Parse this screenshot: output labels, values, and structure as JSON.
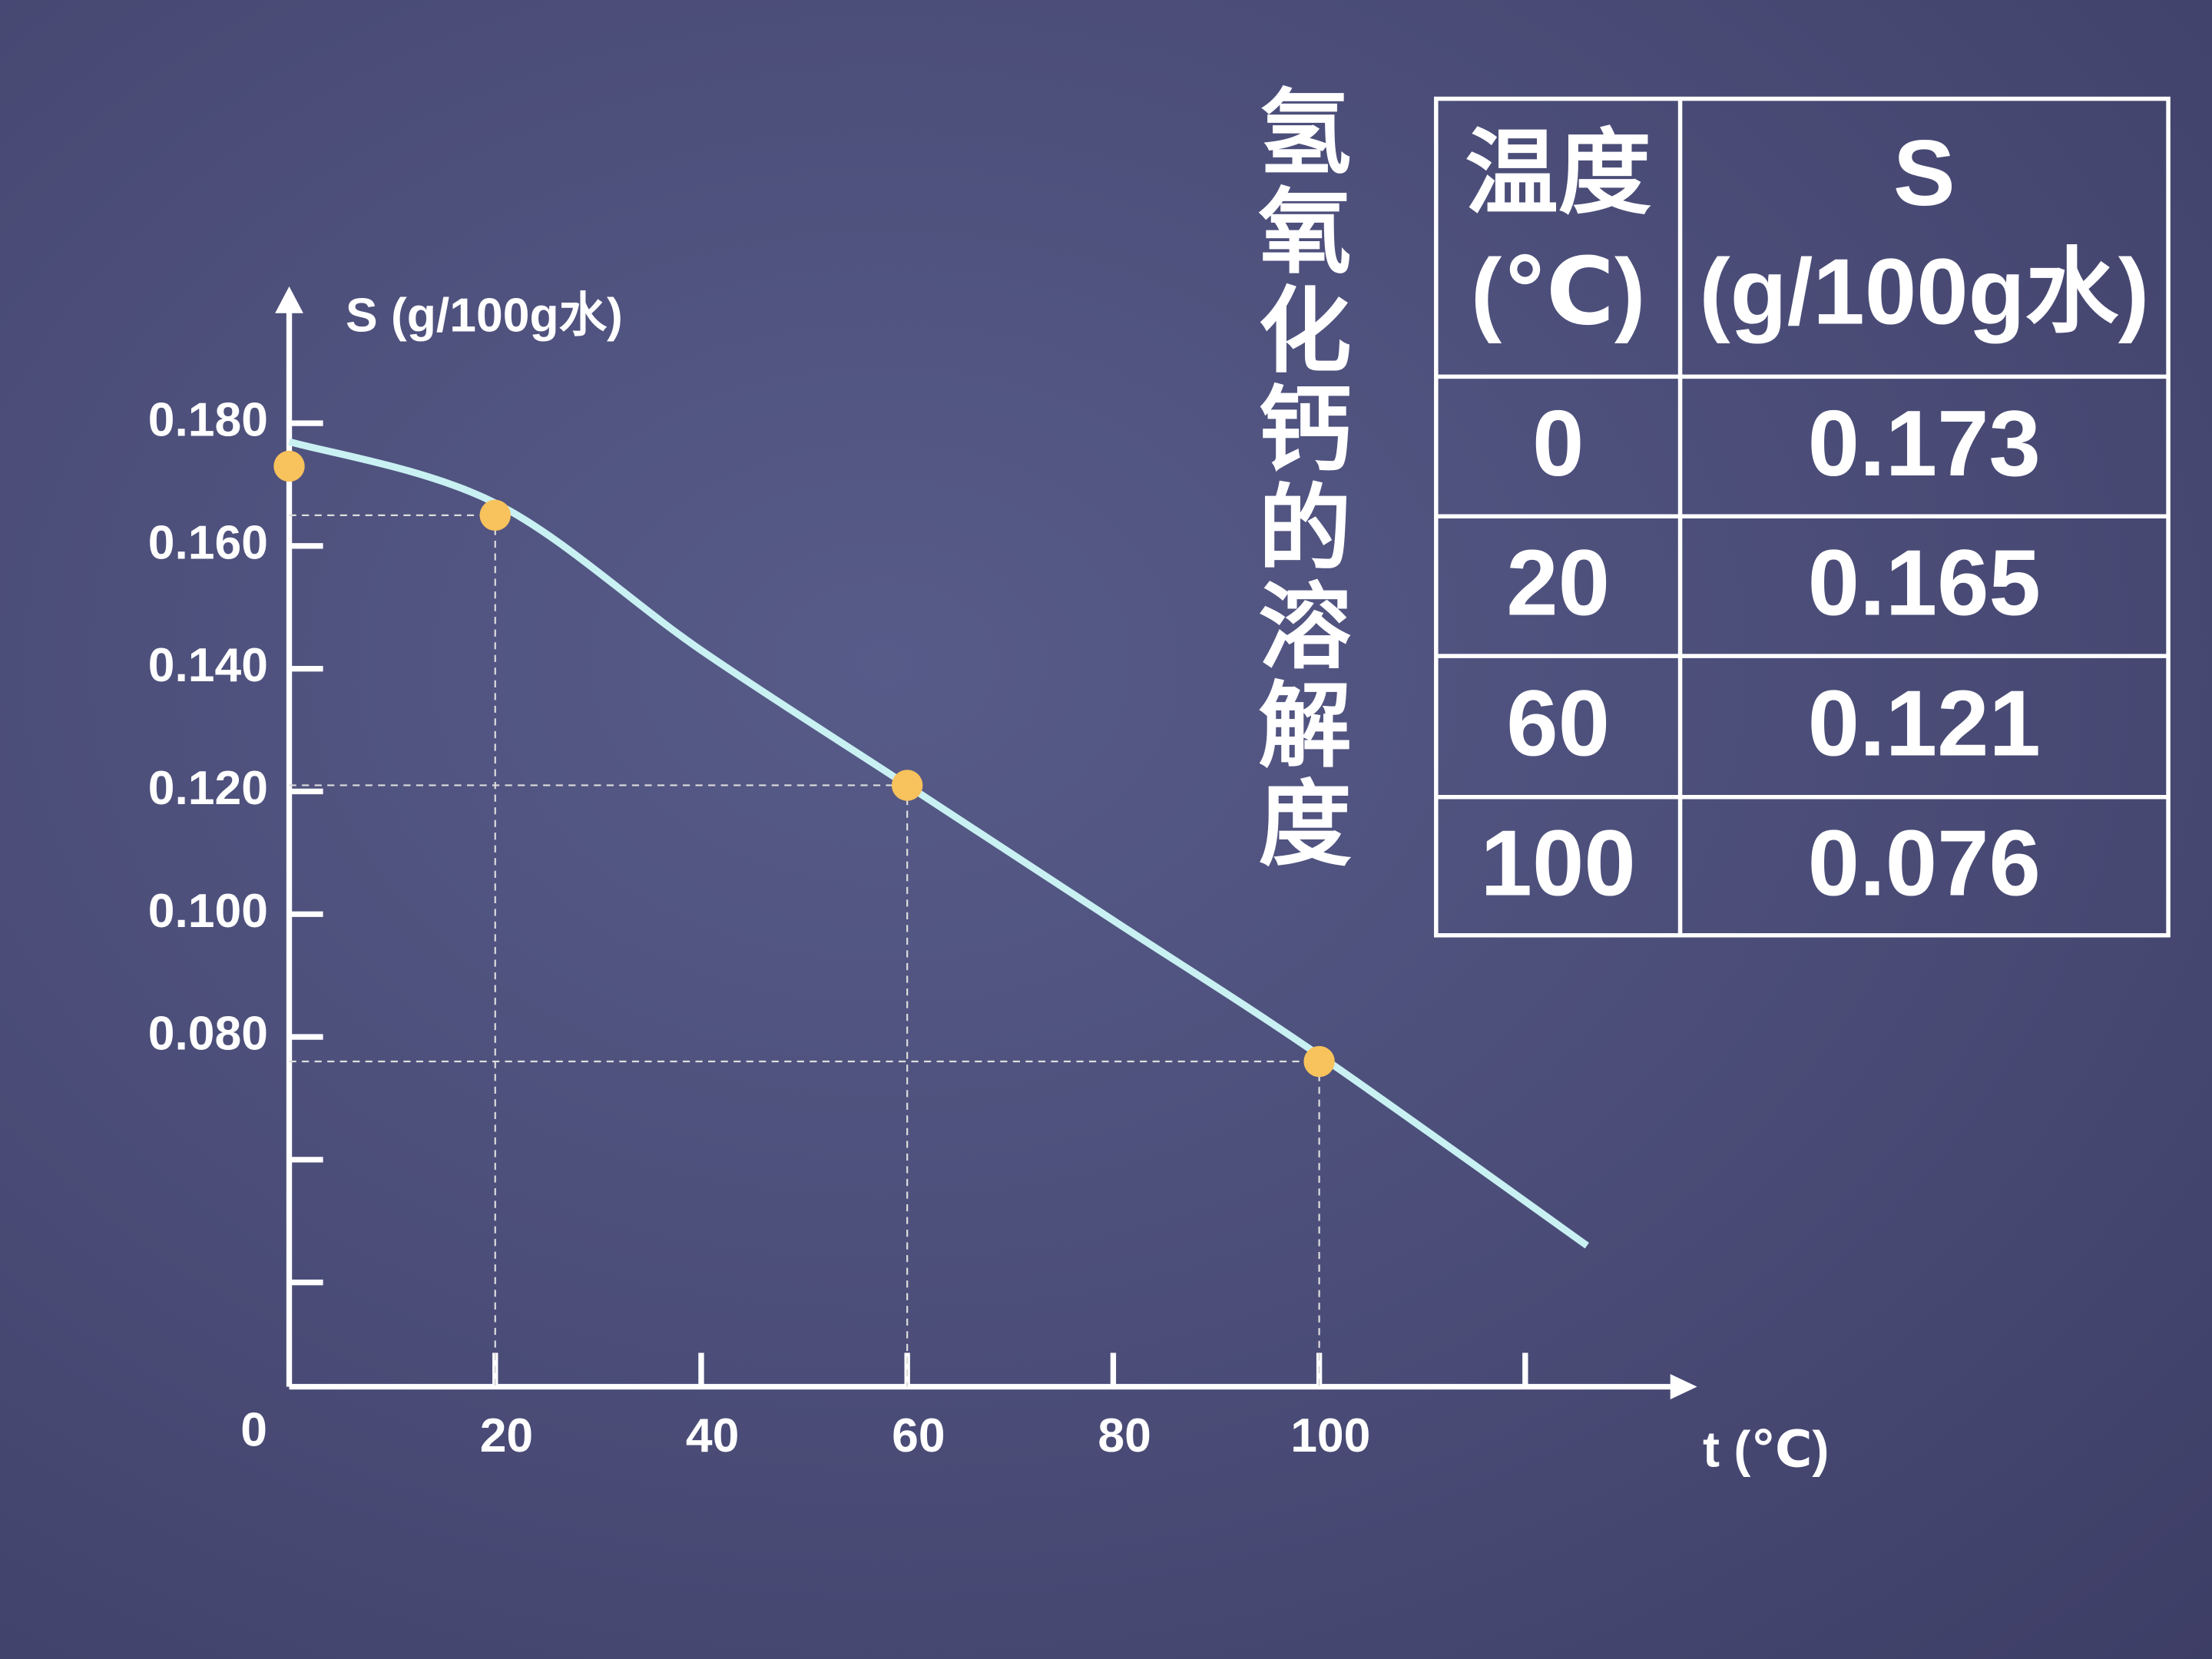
{
  "chart_data": {
    "type": "scatter",
    "title": "氢氧化钙的溶解度",
    "y_label": "S (g/100g水)",
    "x_label": "t (℃)",
    "xlim": [
      0,
      136
    ],
    "xticks": [
      0,
      20,
      40,
      60,
      80,
      100,
      {
        "value": 120,
        "label": null
      }
    ],
    "ylim": [
      0.023,
      0.2
    ],
    "yticks": [
      {
        "value": 0.04,
        "label": null
      },
      {
        "value": 0.06,
        "label": null
      },
      {
        "value": 0.08,
        "label": "0.080"
      },
      {
        "value": 0.1,
        "label": "0.100"
      },
      {
        "value": 0.12,
        "label": "0.120"
      },
      {
        "value": 0.14,
        "label": "0.140"
      },
      {
        "value": 0.16,
        "label": "0.160"
      },
      {
        "value": 0.18,
        "label": "0.180"
      }
    ],
    "series": [
      {
        "type": "scatter",
        "color": "#f8c25c",
        "x": [
          0,
          20,
          60,
          100
        ],
        "values": [
          0.173,
          0.165,
          0.121,
          0.076
        ]
      },
      {
        "type": "line",
        "color": "#c9f1f3",
        "x": [
          0,
          20,
          40,
          60,
          80,
          100,
          126
        ],
        "values": [
          0.177,
          0.167,
          0.143,
          0.121,
          0.099,
          0.077,
          0.046
        ]
      }
    ]
  },
  "table": {
    "header": [
      "温度\n(℃)",
      "S\n(g/100g水)"
    ]
  }
}
